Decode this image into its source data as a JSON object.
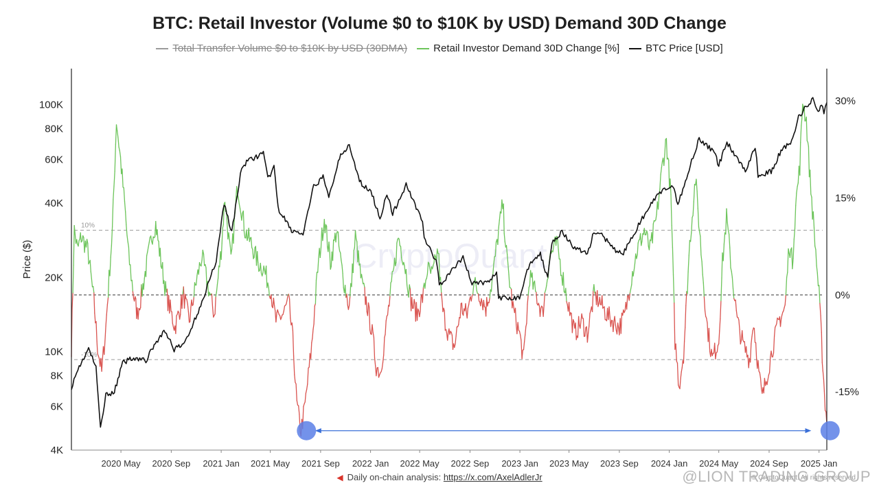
{
  "title": "BTC: Retail Investor (Volume $0 to $10K by USD) Demand 30D Change",
  "legend": [
    {
      "label": "Total Transfer Volume $0 to $10K by USD (30DMA)",
      "color": "#9a9a9a",
      "hidden": true
    },
    {
      "label": "Retail Investor Demand 30D Change [%]",
      "color": "#6cc45a",
      "hidden": false
    },
    {
      "label": "BTC Price [USD]",
      "color": "#111111",
      "hidden": false
    }
  ],
  "watermark": "CryptoQuant",
  "footer": {
    "prefix": "Daily on-chain analysis:",
    "link": "https://x.com/AxelAdlerJr"
  },
  "overlay_text": "@LION TRADING GROUP",
  "copyright": "© CryptoQuant. All rights reserved",
  "chart_data": {
    "type": "line",
    "ylabel": "Price ($)",
    "left_axis": {
      "scale": "log",
      "ylim": [
        4000,
        140000
      ],
      "ticks": [
        "100K",
        "80K",
        "60K",
        "40K",
        "20K",
        "10K",
        "8K",
        "6K",
        "4K"
      ]
    },
    "right_axis": {
      "scale": "linear",
      "ylim": [
        -24,
        35
      ],
      "ticks": [
        "30%",
        "15%",
        "0%",
        "-15%"
      ]
    },
    "x_ticks": [
      "2020 May",
      "2020 Sep",
      "2021 Jan",
      "2021 May",
      "2021 Sep",
      "2022 Jan",
      "2022 May",
      "2022 Sep",
      "2023 Jan",
      "2023 May",
      "2023 Sep",
      "2024 Jan",
      "2024 May",
      "2024 Sep",
      "2025 Jan"
    ],
    "x_range": [
      "2020-01-01",
      "2025-01-20"
    ],
    "reference_lines": [
      {
        "label": "10%",
        "value": 10
      },
      {
        "label": "",
        "value": 0
      },
      {
        "label": "-10%",
        "value": -10
      }
    ],
    "colors": {
      "positive": "#6cc45a",
      "negative": "#d9534f",
      "price": "#111111",
      "annotation": "#3a6fd8",
      "marker": "#5b7fe6"
    },
    "annotation": {
      "from": "2021-07-20",
      "to": "2025-01-18",
      "value": -21
    },
    "series": [
      {
        "name": "BTC Price [USD]",
        "axis": "left",
        "points": [
          [
            "2020-01-01",
            7200
          ],
          [
            "2020-01-20",
            8700
          ],
          [
            "2020-02-12",
            10300
          ],
          [
            "2020-03-01",
            8600
          ],
          [
            "2020-03-12",
            4900
          ],
          [
            "2020-03-25",
            6700
          ],
          [
            "2020-04-15",
            6900
          ],
          [
            "2020-05-05",
            9000
          ],
          [
            "2020-06-01",
            9500
          ],
          [
            "2020-07-01",
            9200
          ],
          [
            "2020-07-27",
            11000
          ],
          [
            "2020-08-17",
            12200
          ],
          [
            "2020-09-08",
            10200
          ],
          [
            "2020-10-01",
            10700
          ],
          [
            "2020-10-25",
            13000
          ],
          [
            "2020-11-15",
            16000
          ],
          [
            "2020-12-01",
            19000
          ],
          [
            "2020-12-20",
            23500
          ],
          [
            "2021-01-08",
            40000
          ],
          [
            "2021-01-27",
            30500
          ],
          [
            "2021-02-20",
            56000
          ],
          [
            "2021-03-13",
            60000
          ],
          [
            "2021-04-14",
            63500
          ],
          [
            "2021-04-25",
            50000
          ],
          [
            "2021-05-10",
            56000
          ],
          [
            "2021-05-20",
            38000
          ],
          [
            "2021-06-22",
            31000
          ],
          [
            "2021-07-20",
            29800
          ],
          [
            "2021-08-15",
            46500
          ],
          [
            "2021-09-07",
            51000
          ],
          [
            "2021-09-21",
            42000
          ],
          [
            "2021-10-20",
            64000
          ],
          [
            "2021-11-10",
            67500
          ],
          [
            "2021-12-05",
            49000
          ],
          [
            "2022-01-05",
            43500
          ],
          [
            "2022-01-24",
            34500
          ],
          [
            "2022-02-10",
            44000
          ],
          [
            "2022-02-24",
            36000
          ],
          [
            "2022-03-29",
            47500
          ],
          [
            "2022-05-08",
            34000
          ],
          [
            "2022-05-12",
            29000
          ],
          [
            "2022-06-13",
            22500
          ],
          [
            "2022-06-18",
            18500
          ],
          [
            "2022-07-10",
            20500
          ],
          [
            "2022-08-15",
            24000
          ],
          [
            "2022-09-06",
            19000
          ],
          [
            "2022-10-15",
            19100
          ],
          [
            "2022-11-05",
            21000
          ],
          [
            "2022-11-10",
            16400
          ],
          [
            "2022-12-31",
            16550
          ],
          [
            "2023-01-25",
            23000
          ],
          [
            "2023-02-20",
            24800
          ],
          [
            "2023-03-10",
            20000
          ],
          [
            "2023-03-20",
            28000
          ],
          [
            "2023-04-14",
            30500
          ],
          [
            "2023-05-12",
            26500
          ],
          [
            "2023-06-15",
            25000
          ],
          [
            "2023-07-01",
            30500
          ],
          [
            "2023-07-20",
            29800
          ],
          [
            "2023-08-17",
            26000
          ],
          [
            "2023-09-11",
            25000
          ],
          [
            "2023-10-24",
            34000
          ],
          [
            "2023-12-06",
            44000
          ],
          [
            "2024-01-10",
            46500
          ],
          [
            "2024-01-22",
            39500
          ],
          [
            "2024-03-05",
            66000
          ],
          [
            "2024-03-14",
            73000
          ],
          [
            "2024-04-20",
            64000
          ],
          [
            "2024-05-01",
            57000
          ],
          [
            "2024-05-21",
            70500
          ],
          [
            "2024-07-05",
            54000
          ],
          [
            "2024-07-29",
            68000
          ],
          [
            "2024-08-05",
            52000
          ],
          [
            "2024-09-06",
            53500
          ],
          [
            "2024-09-30",
            65000
          ],
          [
            "2024-10-29",
            72000
          ],
          [
            "2024-11-12",
            89000
          ],
          [
            "2024-12-05",
            100500
          ],
          [
            "2024-12-17",
            106000
          ],
          [
            "2024-12-30",
            92500
          ],
          [
            "2025-01-07",
            102000
          ],
          [
            "2025-01-13",
            91000
          ],
          [
            "2025-01-20",
            102000
          ]
        ]
      },
      {
        "name": "Retail Investor Demand 30D Change [%]",
        "axis": "right",
        "points": [
          [
            "2020-01-01",
            -8
          ],
          [
            "2020-01-08",
            10
          ],
          [
            "2020-01-16",
            7
          ],
          [
            "2020-01-25",
            9
          ],
          [
            "2020-02-10",
            7
          ],
          [
            "2020-02-25",
            -1
          ],
          [
            "2020-03-05",
            -8
          ],
          [
            "2020-03-15",
            -12
          ],
          [
            "2020-03-25",
            -5
          ],
          [
            "2020-04-10",
            10
          ],
          [
            "2020-04-20",
            27
          ],
          [
            "2020-04-30",
            21
          ],
          [
            "2020-05-10",
            14
          ],
          [
            "2020-05-20",
            6
          ],
          [
            "2020-06-01",
            0
          ],
          [
            "2020-06-10",
            -3
          ],
          [
            "2020-06-20",
            0
          ],
          [
            "2020-07-01",
            4
          ],
          [
            "2020-07-15",
            9
          ],
          [
            "2020-07-25",
            11
          ],
          [
            "2020-08-05",
            6
          ],
          [
            "2020-08-20",
            0
          ],
          [
            "2020-09-10",
            -5
          ],
          [
            "2020-10-01",
            0
          ],
          [
            "2020-10-15",
            -4
          ],
          [
            "2020-11-01",
            2
          ],
          [
            "2020-11-15",
            6
          ],
          [
            "2020-12-01",
            1
          ],
          [
            "2020-12-15",
            -3
          ],
          [
            "2021-01-01",
            7
          ],
          [
            "2021-01-10",
            15
          ],
          [
            "2021-01-25",
            5
          ],
          [
            "2021-02-10",
            17
          ],
          [
            "2021-02-28",
            10
          ],
          [
            "2021-03-15",
            8
          ],
          [
            "2021-04-01",
            5
          ],
          [
            "2021-04-15",
            4
          ],
          [
            "2021-05-01",
            1
          ],
          [
            "2021-05-15",
            -4
          ],
          [
            "2021-06-01",
            -3
          ],
          [
            "2021-06-15",
            -1
          ],
          [
            "2021-06-25",
            -7
          ],
          [
            "2021-07-05",
            -17
          ],
          [
            "2021-07-15",
            -21
          ],
          [
            "2021-07-25",
            -17
          ],
          [
            "2021-08-10",
            -8
          ],
          [
            "2021-08-25",
            4
          ],
          [
            "2021-09-10",
            12
          ],
          [
            "2021-09-25",
            5
          ],
          [
            "2021-10-10",
            10
          ],
          [
            "2021-10-25",
            3
          ],
          [
            "2021-11-10",
            -2
          ],
          [
            "2021-11-25",
            9
          ],
          [
            "2021-12-10",
            2
          ],
          [
            "2021-12-25",
            -2
          ],
          [
            "2022-01-05",
            -6
          ],
          [
            "2022-01-15",
            -11
          ],
          [
            "2022-01-25",
            -12
          ],
          [
            "2022-02-10",
            -4
          ],
          [
            "2022-02-25",
            3
          ],
          [
            "2022-03-10",
            9
          ],
          [
            "2022-03-25",
            5
          ],
          [
            "2022-04-10",
            -1
          ],
          [
            "2022-04-25",
            -3
          ],
          [
            "2022-05-10",
            0
          ],
          [
            "2022-05-20",
            4
          ],
          [
            "2022-06-01",
            3
          ],
          [
            "2022-06-15",
            7
          ],
          [
            "2022-06-25",
            -2
          ],
          [
            "2022-07-10",
            -6
          ],
          [
            "2022-07-25",
            -8
          ],
          [
            "2022-08-10",
            -2
          ],
          [
            "2022-08-25",
            -3
          ],
          [
            "2022-09-10",
            2
          ],
          [
            "2022-09-25",
            0
          ],
          [
            "2022-10-10",
            -2
          ],
          [
            "2022-10-25",
            2
          ],
          [
            "2022-11-10",
            10
          ],
          [
            "2022-11-20",
            14
          ],
          [
            "2022-12-01",
            5
          ],
          [
            "2022-12-15",
            -2
          ],
          [
            "2022-12-31",
            -6
          ],
          [
            "2023-01-10",
            -10
          ],
          [
            "2023-01-25",
            3
          ],
          [
            "2023-02-10",
            0
          ],
          [
            "2023-02-25",
            -3
          ],
          [
            "2023-03-15",
            6
          ],
          [
            "2023-04-01",
            8
          ],
          [
            "2023-04-15",
            3
          ],
          [
            "2023-05-01",
            -2
          ],
          [
            "2023-05-15",
            -6
          ],
          [
            "2023-06-01",
            -4
          ],
          [
            "2023-06-15",
            -6
          ],
          [
            "2023-07-01",
            0
          ],
          [
            "2023-07-15",
            -1
          ],
          [
            "2023-08-01",
            -3
          ],
          [
            "2023-08-15",
            -4
          ],
          [
            "2023-09-01",
            -5
          ],
          [
            "2023-09-15",
            -3
          ],
          [
            "2023-10-01",
            3
          ],
          [
            "2023-10-15",
            7
          ],
          [
            "2023-11-01",
            10
          ],
          [
            "2023-11-15",
            7
          ],
          [
            "2023-12-01",
            12
          ],
          [
            "2023-12-15",
            20
          ],
          [
            "2023-12-25",
            24
          ],
          [
            "2024-01-05",
            15
          ],
          [
            "2024-01-15",
            -7
          ],
          [
            "2024-01-25",
            -14
          ],
          [
            "2024-02-05",
            -9
          ],
          [
            "2024-02-20",
            8
          ],
          [
            "2024-03-05",
            18
          ],
          [
            "2024-03-15",
            10
          ],
          [
            "2024-04-01",
            -4
          ],
          [
            "2024-04-15",
            -10
          ],
          [
            "2024-05-01",
            -7
          ],
          [
            "2024-05-10",
            5
          ],
          [
            "2024-05-20",
            12
          ],
          [
            "2024-06-01",
            4
          ],
          [
            "2024-06-15",
            -4
          ],
          [
            "2024-07-01",
            -8
          ],
          [
            "2024-07-15",
            -10
          ],
          [
            "2024-07-25",
            -4
          ],
          [
            "2024-08-05",
            -11
          ],
          [
            "2024-08-15",
            -16
          ],
          [
            "2024-08-25",
            -13
          ],
          [
            "2024-09-10",
            -8
          ],
          [
            "2024-09-25",
            -4
          ],
          [
            "2024-10-10",
            -2
          ],
          [
            "2024-10-20",
            8
          ],
          [
            "2024-10-28",
            5
          ],
          [
            "2024-11-05",
            14
          ],
          [
            "2024-11-15",
            20
          ],
          [
            "2024-11-22",
            30
          ],
          [
            "2024-12-01",
            27
          ],
          [
            "2024-12-10",
            18
          ],
          [
            "2024-12-20",
            10
          ],
          [
            "2025-01-01",
            0
          ],
          [
            "2025-01-07",
            -7
          ],
          [
            "2025-01-14",
            -15
          ],
          [
            "2025-01-20",
            -20
          ]
        ]
      }
    ]
  }
}
